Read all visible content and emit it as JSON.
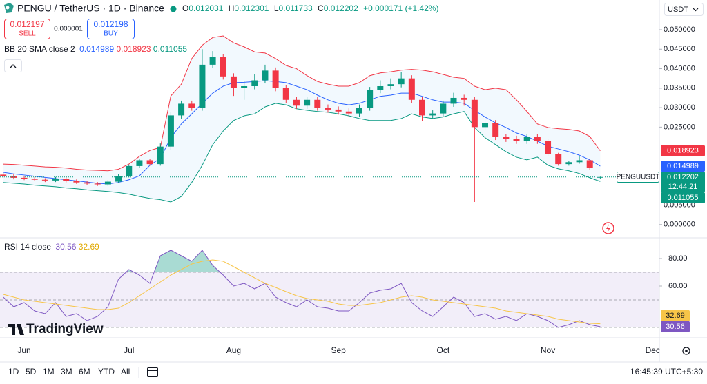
{
  "header": {
    "title": "PENGU / TetherUS · 1D · Binance",
    "ohlc_labels": [
      "O",
      "H",
      "L",
      "C"
    ],
    "change": "+0.000171 (+1.42%)",
    "sell_price": 0.012197,
    "sell": "SELL",
    "spread": 1e-06,
    "buy_price": 0.012198,
    "buy": "BUY",
    "currency": "USDT",
    "symbol_tag": "PENGUUSDT",
    "countdown": "12:44:21"
  },
  "footer": {
    "ranges": [
      "1D",
      "5D",
      "1M",
      "3M",
      "6M",
      "YTD",
      "All"
    ],
    "clock": "16:45:39 UTC+5:30",
    "logo": "TradingView"
  },
  "chart_data": [
    {
      "type": "candlestick",
      "legend": "BB 20 SMA close 2",
      "categories": [
        null,
        null,
        "Jun",
        null,
        null,
        null,
        null,
        null,
        null,
        null,
        null,
        null,
        "Jul",
        null,
        null,
        null,
        null,
        null,
        null,
        null,
        null,
        null,
        "Aug",
        null,
        null,
        null,
        null,
        null,
        null,
        null,
        null,
        null,
        "Sep",
        null,
        null,
        null,
        null,
        null,
        null,
        null,
        null,
        null,
        "Oct",
        null,
        null,
        null,
        null,
        null,
        null,
        null,
        null,
        null,
        "Nov",
        null,
        null,
        null,
        null,
        null,
        null,
        null,
        null,
        null,
        "Dec"
      ],
      "open": [
        0.0128,
        0.0125,
        0.012,
        0.0118,
        0.0115,
        0.0113,
        0.0118,
        0.0112,
        0.0108,
        0.0105,
        0.0103,
        0.011,
        0.0125,
        0.015,
        0.0165,
        0.0155,
        0.02,
        0.028,
        0.031,
        0.03,
        0.041,
        0.043,
        0.038,
        0.035,
        0.0355,
        0.037,
        0.0395,
        0.035,
        0.032,
        0.0305,
        0.032,
        0.03,
        0.0295,
        0.029,
        0.0285,
        0.03,
        0.0345,
        0.0355,
        0.036,
        0.0375,
        0.032,
        0.028,
        0.0285,
        0.031,
        0.0325,
        0.032,
        0.025,
        0.026,
        0.0225,
        0.022,
        0.0215,
        0.0225,
        0.0215,
        0.018,
        0.0155,
        0.016,
        0.0165,
        0.012031,
        null,
        null,
        null,
        null,
        null
      ],
      "high": [
        0.0132,
        0.0129,
        0.0124,
        0.0122,
        0.0119,
        0.0122,
        0.0122,
        0.0116,
        0.0112,
        0.0109,
        0.0114,
        0.0129,
        0.0154,
        0.0169,
        0.0169,
        0.0208,
        0.0288,
        0.0318,
        0.0318,
        0.045,
        0.0445,
        0.0438,
        0.0388,
        0.0368,
        0.0385,
        0.041,
        0.0403,
        0.0358,
        0.0328,
        0.0328,
        0.0328,
        0.0308,
        0.0303,
        0.0298,
        0.0308,
        0.0353,
        0.037,
        0.0375,
        0.0392,
        0.0383,
        0.0328,
        0.0293,
        0.0318,
        0.0338,
        0.0333,
        0.0328,
        0.0272,
        0.0268,
        0.0233,
        0.0228,
        0.0233,
        0.0233,
        0.0219,
        0.0184,
        0.0164,
        0.0175,
        0.0169,
        0.012301,
        null,
        null,
        null,
        null,
        null
      ],
      "low": [
        0.0121,
        0.0116,
        0.0114,
        0.0111,
        0.0109,
        0.0109,
        0.0108,
        0.0104,
        0.0101,
        0.0099,
        0.0099,
        0.0106,
        0.0121,
        0.0146,
        0.0151,
        0.0151,
        0.0192,
        0.0272,
        0.0292,
        0.0292,
        0.0402,
        0.0372,
        0.033,
        0.032,
        0.0347,
        0.0362,
        0.0342,
        0.0312,
        0.0297,
        0.0297,
        0.0292,
        0.0287,
        0.0282,
        0.0277,
        0.0277,
        0.0292,
        0.0337,
        0.0347,
        0.0352,
        0.0312,
        0.0265,
        0.0272,
        0.0277,
        0.0302,
        0.0305,
        0.0058,
        0.0242,
        0.0217,
        0.0212,
        0.0207,
        0.0207,
        0.0207,
        0.0176,
        0.0151,
        0.0151,
        0.0156,
        0.0141,
        0.011733,
        null,
        null,
        null,
        null,
        null
      ],
      "close": [
        0.0125,
        0.012,
        0.0118,
        0.0115,
        0.0113,
        0.0118,
        0.0112,
        0.0108,
        0.0105,
        0.0103,
        0.011,
        0.0125,
        0.015,
        0.0165,
        0.0155,
        0.02,
        0.028,
        0.031,
        0.03,
        0.041,
        0.043,
        0.038,
        0.035,
        0.0355,
        0.037,
        0.0395,
        0.035,
        0.032,
        0.0305,
        0.032,
        0.03,
        0.0295,
        0.029,
        0.0285,
        0.03,
        0.0345,
        0.0355,
        0.036,
        0.0375,
        0.032,
        0.028,
        0.0285,
        0.031,
        0.0325,
        0.032,
        0.025,
        0.026,
        0.0225,
        0.022,
        0.0215,
        0.0225,
        0.0215,
        0.018,
        0.0155,
        0.016,
        0.0165,
        0.0145,
        0.012202,
        null,
        null,
        null,
        null,
        null
      ],
      "up_color": "#089981",
      "down_color": "#f23645",
      "series": [
        {
          "color": "#2962ff",
          "values": [
            0.0134,
            0.013,
            0.0127,
            0.0124,
            0.0121,
            0.0118,
            0.0115,
            0.0112,
            0.0109,
            0.0106,
            0.0104,
            0.0108,
            0.0115,
            0.0125,
            0.0152,
            0.017,
            0.0223,
            0.0258,
            0.0284,
            0.0311,
            0.0337,
            0.0355,
            0.0364,
            0.0365,
            0.0367,
            0.0369,
            0.0367,
            0.0364,
            0.0355,
            0.0346,
            0.0332,
            0.032,
            0.0311,
            0.0307,
            0.0311,
            0.032,
            0.0329,
            0.0332,
            0.0337,
            0.0337,
            0.0329,
            0.032,
            0.0314,
            0.0314,
            0.0311,
            0.0293,
            0.0276,
            0.0261,
            0.0249,
            0.0235,
            0.0226,
            0.0214,
            0.0201,
            0.0194,
            0.0187,
            0.0178,
            0.0166,
            0.014989,
            null,
            null,
            null,
            null,
            null
          ]
        },
        {
          "color": "#f23645",
          "values": [
            0.0155,
            0.0154,
            0.0152,
            0.015,
            0.0148,
            0.0147,
            0.0145,
            0.0142,
            0.014,
            0.0139,
            0.0138,
            0.0142,
            0.0155,
            0.0175,
            0.019,
            0.0198,
            0.033,
            0.036,
            0.0426,
            0.046,
            0.048,
            0.0484,
            0.0466,
            0.0456,
            0.0443,
            0.044,
            0.0426,
            0.0408,
            0.04,
            0.0382,
            0.0367,
            0.036,
            0.0355,
            0.0355,
            0.0364,
            0.0382,
            0.0389,
            0.0392,
            0.0396,
            0.0398,
            0.0396,
            0.0392,
            0.0385,
            0.0378,
            0.0375,
            0.0355,
            0.0346,
            0.035,
            0.0346,
            0.032,
            0.029,
            0.0258,
            0.0249,
            0.0246,
            0.0244,
            0.024,
            0.0226,
            0.018923,
            null,
            null,
            null,
            null,
            null
          ]
        },
        {
          "color": "#089981",
          "values": [
            0.0108,
            0.0106,
            0.0104,
            0.0101,
            0.0099,
            0.0097,
            0.0094,
            0.0092,
            0.0089,
            0.0087,
            0.0085,
            0.0082,
            0.0078,
            0.0072,
            0.0067,
            0.0064,
            0.0058,
            0.0072,
            0.0108,
            0.0152,
            0.0205,
            0.024,
            0.0267,
            0.0279,
            0.0284,
            0.0302,
            0.0311,
            0.0307,
            0.0297,
            0.0293,
            0.029,
            0.0288,
            0.0284,
            0.0279,
            0.0272,
            0.0267,
            0.0267,
            0.0267,
            0.0272,
            0.0284,
            0.0276,
            0.0272,
            0.0276,
            0.0284,
            0.029,
            0.0249,
            0.0223,
            0.0205,
            0.0187,
            0.0173,
            0.0166,
            0.0173,
            0.0152,
            0.0143,
            0.0138,
            0.0131,
            0.012,
            0.011055,
            null,
            null,
            null,
            null,
            null
          ]
        }
      ],
      "band_fill": "#2196f3",
      "ylim": [
        -0.0034,
        0.0576
      ],
      "yticks": [
        {
          "value": 0.05,
          "label": "0.050000"
        },
        {
          "value": 0.045,
          "label": "0.045000"
        },
        {
          "value": 0.04,
          "label": "0.040000"
        },
        {
          "value": 0.035,
          "label": "0.035000"
        },
        {
          "value": 0.03,
          "label": "0.030000"
        },
        {
          "value": 0.025,
          "label": "0.025000"
        },
        {
          "value": 0.005,
          "label": "0.005000"
        },
        {
          "value": 0,
          "label": "0.000000"
        }
      ],
      "grid": false
    },
    {
      "type": "line",
      "legend": "RSI 14 close",
      "series": [
        {
          "color": "#7e57c2",
          "values": [
            52,
            45,
            48,
            42,
            40,
            48,
            38,
            40,
            35,
            38,
            45,
            65,
            72,
            68,
            62,
            82,
            86,
            82,
            78,
            86,
            75,
            68,
            60,
            62,
            58,
            62,
            52,
            48,
            45,
            50,
            45,
            44,
            42,
            42,
            48,
            55,
            57,
            58,
            62,
            48,
            42,
            38,
            45,
            52,
            48,
            38,
            40,
            36,
            38,
            35,
            40,
            38,
            35,
            30,
            32,
            35,
            32,
            30.56,
            null,
            null,
            null,
            null,
            null
          ]
        },
        {
          "color": "#f7c548",
          "values": [
            54,
            52,
            50,
            49,
            48,
            47,
            46,
            45,
            44,
            43,
            43,
            44,
            48,
            53,
            58,
            63,
            68,
            72,
            76,
            78,
            79,
            78,
            74,
            70,
            66,
            62,
            59,
            56,
            53,
            51,
            50,
            49,
            47,
            46,
            46,
            47,
            48,
            50,
            52,
            53,
            52,
            50,
            49,
            48,
            47,
            46,
            45,
            44,
            42,
            41,
            40,
            39,
            38,
            36,
            35,
            34,
            33,
            32.69,
            null,
            null,
            null,
            null,
            null
          ]
        }
      ],
      "bands": [
        70,
        50,
        30
      ],
      "band_color": "#7e57c2",
      "overbought_color": "#089981",
      "ylim": [
        22.5,
        95
      ],
      "yticks": [
        {
          "value": 80,
          "label": "80.00"
        },
        {
          "value": 60,
          "label": "60.00"
        }
      ],
      "grid": false
    }
  ]
}
